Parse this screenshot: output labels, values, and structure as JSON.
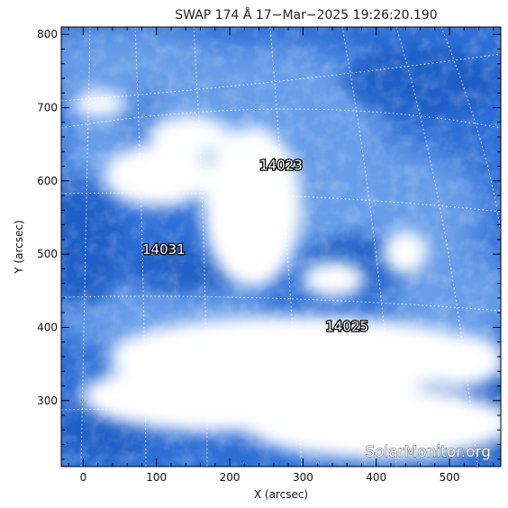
{
  "title": "SWAP 174 Å 17−Mar−2025 19:26:20.190",
  "axes": {
    "xlabel": "X (arcsec)",
    "ylabel": "Y (arcsec)",
    "xlim": [
      -30,
      570
    ],
    "ylim": [
      210,
      810
    ],
    "x_ticks": [
      0,
      100,
      200,
      300,
      400,
      500
    ],
    "y_ticks": [
      300,
      400,
      500,
      600,
      700,
      800
    ]
  },
  "active_regions": [
    {
      "label": "14023",
      "x": 270,
      "y": 615
    },
    {
      "label": "14031",
      "x": 110,
      "y": 500
    },
    {
      "label": "14025",
      "x": 360,
      "y": 395
    }
  ],
  "watermark": "SolarMonitor.org",
  "colors": {
    "background": "#ffffff",
    "emission_dark": "#2f6fd6",
    "emission_mid": "#6ea2ea",
    "emission_bright": "#ffffff",
    "grid": "#ffffff"
  }
}
